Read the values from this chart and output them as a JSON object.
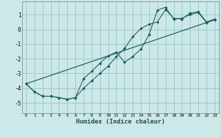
{
  "xlabel": "Humidex (Indice chaleur)",
  "background_color": "#cce8e8",
  "grid_color": "#a0c8c8",
  "line_color": "#1a6060",
  "xlim": [
    -0.5,
    23.5
  ],
  "ylim": [
    -5.7,
    1.9
  ],
  "yticks": [
    1,
    0,
    -1,
    -2,
    -3,
    -4,
    -5
  ],
  "xticks": [
    0,
    1,
    2,
    3,
    4,
    5,
    6,
    7,
    8,
    9,
    10,
    11,
    12,
    13,
    14,
    15,
    16,
    17,
    18,
    19,
    20,
    21,
    22,
    23
  ],
  "line1_x": [
    0,
    1,
    2,
    3,
    4,
    5,
    6,
    7,
    8,
    9,
    10,
    11,
    12,
    13,
    14,
    15,
    16,
    17,
    18,
    19,
    20,
    21,
    22,
    23
  ],
  "line1_y": [
    -3.7,
    -4.25,
    -4.55,
    -4.55,
    -4.65,
    -4.75,
    -4.65,
    -4.0,
    -3.5,
    -3.0,
    -2.5,
    -1.85,
    -1.3,
    -0.5,
    0.05,
    0.35,
    0.5,
    1.35,
    0.75,
    0.7,
    1.1,
    1.2,
    0.5,
    0.7
  ],
  "line2_x": [
    0,
    1,
    2,
    3,
    4,
    5,
    6,
    7,
    8,
    9,
    10,
    11,
    12,
    13,
    14,
    15,
    16,
    17,
    18,
    19,
    20,
    21,
    22,
    23
  ],
  "line2_y": [
    -3.7,
    -4.25,
    -4.55,
    -4.55,
    -4.65,
    -4.75,
    -4.65,
    -3.35,
    -2.85,
    -2.3,
    -1.8,
    -1.55,
    -2.25,
    -1.85,
    -1.35,
    -0.35,
    1.3,
    1.5,
    0.7,
    0.75,
    1.0,
    1.15,
    0.45,
    0.65
  ],
  "line3_x": [
    0,
    23
  ],
  "line3_y": [
    -3.7,
    0.65
  ]
}
